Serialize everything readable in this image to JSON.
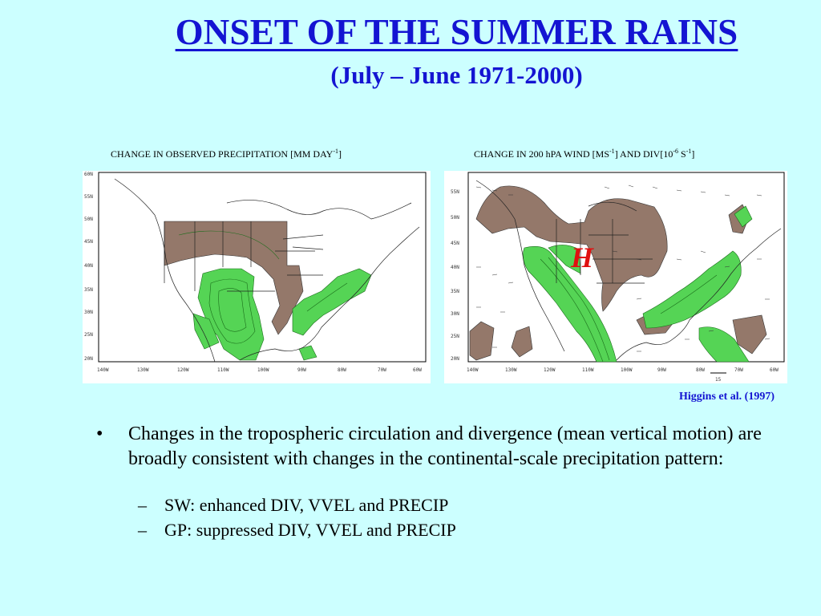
{
  "slide": {
    "title": "ONSET OF THE SUMMER RAINS",
    "subtitle": "(July – June 1971-2000)",
    "citation": "Higgins et al. (1997)"
  },
  "maps": {
    "left": {
      "caption_main": "CHANGE IN OBSERVED PRECIPITATION [MM DAY",
      "caption_sup": "-1",
      "caption_end": "]",
      "lon_ticks": [
        "140W",
        "130W",
        "120W",
        "110W",
        "100W",
        "90W",
        "80W",
        "70W",
        "60W"
      ],
      "lat_ticks": [
        "60N",
        "55N",
        "50N",
        "45N",
        "40N",
        "35N",
        "30N",
        "25N",
        "20N"
      ]
    },
    "right": {
      "caption_main": "CHANGE IN 200 hPA WIND [MS",
      "caption_sup1": "-1",
      "caption_mid": "] AND DIV[10",
      "caption_sup2": "-6",
      "caption_mid2": " S",
      "caption_sup3": "-1",
      "caption_end": "]",
      "marker": "H",
      "lon_ticks": [
        "140W",
        "130W",
        "120W",
        "110W",
        "100W",
        "90W",
        "80W",
        "70W",
        "60W"
      ],
      "lat_ticks": [
        "55N",
        "50N",
        "45N",
        "40N",
        "35N",
        "30N",
        "25N",
        "20N"
      ],
      "vector_scale_label": "15"
    },
    "colors": {
      "positive": "#55d455",
      "negative": "#94786a"
    }
  },
  "bullets": {
    "main": "Changes in the tropospheric circulation and divergence (mean vertical motion) are broadly consistent with changes in the continental-scale precipitation pattern:",
    "bullet_char": "•",
    "dash_char": "–",
    "sub": [
      "SW: enhanced DIV, VVEL and PRECIP",
      "GP: suppressed DIV, VVEL and PRECIP"
    ]
  }
}
